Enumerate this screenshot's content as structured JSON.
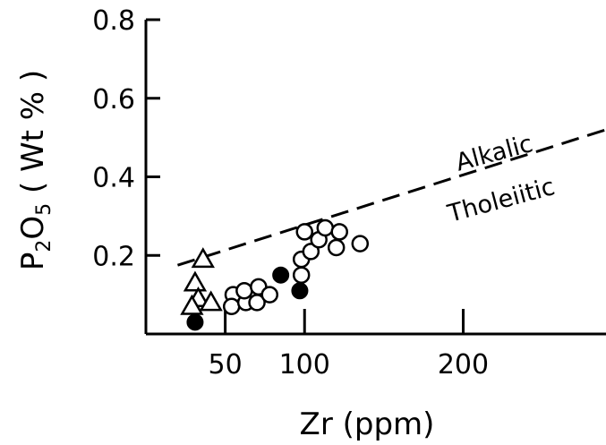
{
  "chart_data": {
    "type": "scatter",
    "xlabel": "Zr (ppm)",
    "ylabel_parts": {
      "main": "P",
      "sub1": "2",
      "mid": "O",
      "sub2": "5",
      "rest": " ( Wt % )"
    },
    "xlim": [
      0,
      290
    ],
    "ylim": [
      0,
      0.8
    ],
    "x_ticks": [
      {
        "value": 50,
        "label": "50"
      },
      {
        "value": 100,
        "label": "100"
      },
      {
        "value": 200,
        "label": "200"
      }
    ],
    "y_ticks": [
      {
        "value": 0.2,
        "label": "0.2"
      },
      {
        "value": 0.4,
        "label": "0.4"
      },
      {
        "value": 0.6,
        "label": "0.6"
      },
      {
        "value": 0.8,
        "label": "0.8"
      }
    ],
    "grid": false,
    "series": [
      {
        "marker": "open-triangle",
        "points": [
          [
            31,
            0.13
          ],
          [
            36,
            0.19
          ],
          [
            33,
            0.09
          ],
          [
            41,
            0.08
          ],
          [
            29,
            0.07
          ]
        ]
      },
      {
        "marker": "open-circle",
        "points": [
          [
            55,
            0.1
          ],
          [
            54,
            0.07
          ],
          [
            63,
            0.08
          ],
          [
            62,
            0.11
          ],
          [
            71,
            0.12
          ],
          [
            70,
            0.08
          ],
          [
            78,
            0.1
          ],
          [
            100,
            0.26
          ],
          [
            98,
            0.19
          ],
          [
            104,
            0.21
          ],
          [
            109,
            0.24
          ],
          [
            113,
            0.27
          ],
          [
            122,
            0.26
          ],
          [
            120,
            0.22
          ],
          [
            98,
            0.15
          ],
          [
            135,
            0.23
          ]
        ]
      },
      {
        "marker": "filled-circle",
        "points": [
          [
            31,
            0.03
          ],
          [
            85,
            0.15
          ],
          [
            97,
            0.11
          ]
        ]
      }
    ],
    "boundary": {
      "style": "dashed",
      "x": [
        20,
        290
      ],
      "y": [
        0.175,
        0.52
      ]
    },
    "annotations": [
      {
        "text": "Alkalic",
        "x": 197,
        "y": 0.415
      },
      {
        "text": "Tholeiitic",
        "x": 192,
        "y": 0.285
      }
    ]
  }
}
